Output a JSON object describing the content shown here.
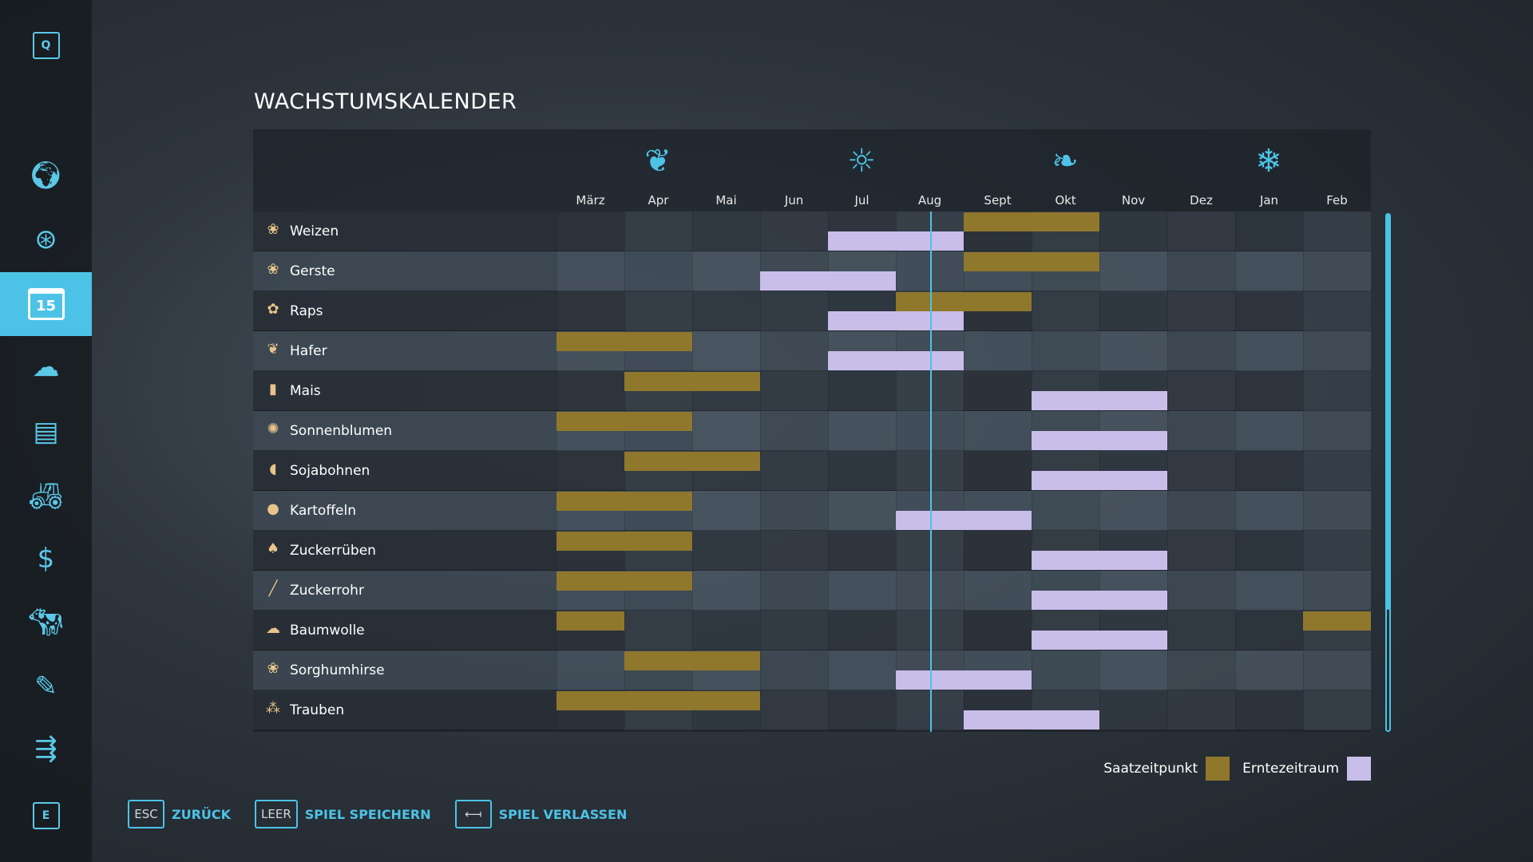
{
  "title": "WACHSTUMSKALENDER",
  "sidebar": {
    "top_key": "Q",
    "bottom_key": "E",
    "items": [
      {
        "icon": "globe-map-icon"
      },
      {
        "icon": "steering-wheel-icon"
      },
      {
        "icon": "calendar-icon",
        "label": "15",
        "active": true
      },
      {
        "icon": "weather-icon"
      },
      {
        "icon": "statistics-icon"
      },
      {
        "icon": "tractor-icon"
      },
      {
        "icon": "dollar-icon"
      },
      {
        "icon": "cow-icon"
      },
      {
        "icon": "contracts-icon"
      },
      {
        "icon": "production-icon"
      }
    ]
  },
  "months": [
    "März",
    "Apr",
    "Mai",
    "Jun",
    "Jul",
    "Aug",
    "Sept",
    "Okt",
    "Nov",
    "Dez",
    "Jan",
    "Feb"
  ],
  "seasons": [
    {
      "icon": "spring-sprout-icon",
      "month": 1
    },
    {
      "icon": "summer-sun-icon",
      "month": 4
    },
    {
      "icon": "autumn-leaves-icon",
      "month": 7
    },
    {
      "icon": "winter-snowflake-icon",
      "month": 10
    }
  ],
  "current_month_position": 5.5,
  "colors": {
    "sowing": "#8f772c",
    "harvest": "#c9bdea",
    "accent": "#4cc3e6"
  },
  "crops": [
    {
      "name": "Weizen",
      "icon": "wheat-icon",
      "sow": [
        [
          6,
          7
        ]
      ],
      "harvest": [
        [
          4,
          5
        ]
      ]
    },
    {
      "name": "Gerste",
      "icon": "barley-icon",
      "sow": [
        [
          6,
          7
        ]
      ],
      "harvest": [
        [
          3,
          4
        ]
      ]
    },
    {
      "name": "Raps",
      "icon": "canola-icon",
      "sow": [
        [
          5,
          6
        ]
      ],
      "harvest": [
        [
          4,
          5
        ]
      ]
    },
    {
      "name": "Hafer",
      "icon": "oat-icon",
      "sow": [
        [
          0,
          1
        ]
      ],
      "harvest": [
        [
          4,
          5
        ]
      ]
    },
    {
      "name": "Mais",
      "icon": "corn-icon",
      "sow": [
        [
          1,
          2
        ]
      ],
      "harvest": [
        [
          7,
          8
        ]
      ]
    },
    {
      "name": "Sonnenblumen",
      "icon": "sunflower-icon",
      "sow": [
        [
          0,
          1
        ]
      ],
      "harvest": [
        [
          7,
          8
        ]
      ]
    },
    {
      "name": "Sojabohnen",
      "icon": "soybean-icon",
      "sow": [
        [
          1,
          2
        ]
      ],
      "harvest": [
        [
          7,
          8
        ]
      ]
    },
    {
      "name": "Kartoffeln",
      "icon": "potato-icon",
      "sow": [
        [
          0,
          1
        ]
      ],
      "harvest": [
        [
          5,
          6
        ]
      ]
    },
    {
      "name": "Zuckerrüben",
      "icon": "sugarbeet-icon",
      "sow": [
        [
          0,
          1
        ]
      ],
      "harvest": [
        [
          7,
          8
        ]
      ]
    },
    {
      "name": "Zuckerrohr",
      "icon": "sugarcane-icon",
      "sow": [
        [
          0,
          1
        ]
      ],
      "harvest": [
        [
          7,
          8
        ]
      ]
    },
    {
      "name": "Baumwolle",
      "icon": "cotton-icon",
      "sow": [
        [
          0,
          0
        ],
        [
          11,
          11
        ]
      ],
      "harvest": [
        [
          7,
          8
        ]
      ]
    },
    {
      "name": "Sorghumhirse",
      "icon": "sorghum-icon",
      "sow": [
        [
          1,
          2
        ]
      ],
      "harvest": [
        [
          5,
          6
        ]
      ]
    },
    {
      "name": "Trauben",
      "icon": "grapes-icon",
      "sow": [
        [
          0,
          2
        ]
      ],
      "harvest": [
        [
          6,
          7
        ]
      ]
    }
  ],
  "legend": {
    "sowing": "Saatzeitpunkt",
    "harvest": "Erntezeitraum"
  },
  "footer": [
    {
      "key": "ESC",
      "label": "ZURÜCK"
    },
    {
      "key": "LEER",
      "label": "SPIEL SPEICHERN"
    },
    {
      "key": "⟻",
      "label": "SPIEL VERLASSEN"
    }
  ]
}
